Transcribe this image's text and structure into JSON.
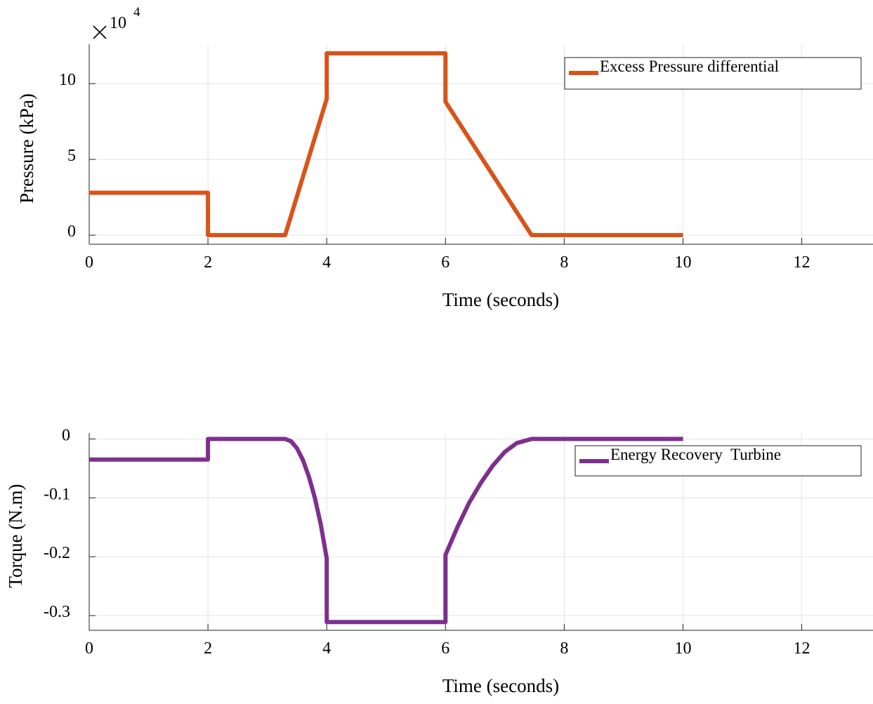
{
  "chart_data": [
    {
      "type": "line",
      "title": "",
      "xlabel": "Time (seconds)",
      "ylabel": "Pressure (kPa)",
      "y_exponent_label": "10",
      "y_exponent_power": "4",
      "xlim": [
        0,
        13.2
      ],
      "ylim": [
        -0.6,
        12.6
      ],
      "xticks": [
        0,
        2,
        4,
        6,
        8,
        10,
        12
      ],
      "xtick_labels": [
        "0",
        "2",
        "4",
        "6",
        "8",
        "10",
        "12"
      ],
      "yticks": [
        0,
        5,
        10
      ],
      "ytick_labels": [
        "0",
        "5",
        "10"
      ],
      "grid": true,
      "legend_position": "top-right",
      "series": [
        {
          "name": "Excess Pressure differential",
          "color": "#D95319",
          "x": [
            0,
            2,
            2,
            3.3,
            4,
            4,
            6,
            6,
            7.45,
            10
          ],
          "y": [
            2.8,
            2.8,
            0,
            0,
            9.0,
            12.0,
            12.0,
            8.8,
            0,
            0
          ]
        }
      ]
    },
    {
      "type": "line",
      "title": "",
      "xlabel": "Time (seconds)",
      "ylabel": "Torque (N.m)",
      "xlim": [
        0,
        13.2
      ],
      "ylim": [
        -0.325,
        0.01
      ],
      "xticks": [
        0,
        2,
        4,
        6,
        8,
        10,
        12
      ],
      "xtick_labels": [
        "0",
        "2",
        "4",
        "6",
        "8",
        "10",
        "12"
      ],
      "yticks": [
        0,
        -0.1,
        -0.2,
        -0.3
      ],
      "ytick_labels": [
        "0",
        "-0.1",
        "-0.2",
        "-0.3"
      ],
      "grid": true,
      "legend_position": "top-right",
      "series": [
        {
          "name": "Energy Recovery  Turbine",
          "color": "#7E2F8E",
          "x": [
            0,
            2,
            2,
            3.3,
            3.4,
            3.5,
            3.6,
            3.7,
            3.8,
            3.9,
            4,
            4,
            6,
            6,
            6.2,
            6.4,
            6.6,
            6.8,
            7.0,
            7.2,
            7.45,
            10
          ],
          "y": [
            -0.035,
            -0.035,
            0,
            0,
            -0.004,
            -0.016,
            -0.036,
            -0.064,
            -0.1,
            -0.145,
            -0.203,
            -0.311,
            -0.311,
            -0.197,
            -0.15,
            -0.108,
            -0.074,
            -0.045,
            -0.022,
            -0.007,
            0,
            0
          ]
        }
      ]
    }
  ]
}
